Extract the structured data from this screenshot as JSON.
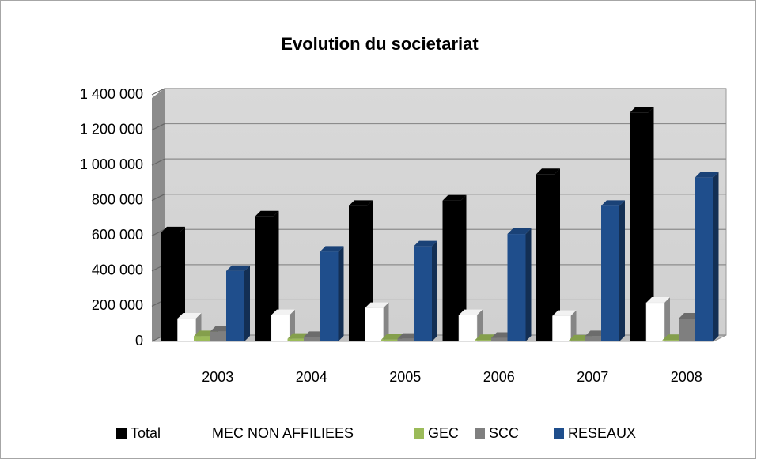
{
  "chart_data": {
    "type": "bar",
    "title": "Evolution du societariat",
    "categories": [
      "2003",
      "2004",
      "2005",
      "2006",
      "2007",
      "2008"
    ],
    "series": [
      {
        "name": "Total",
        "color": "#000000",
        "values": [
          620000,
          710000,
          770000,
          800000,
          950000,
          1300000
        ]
      },
      {
        "name": "MEC NON AFFILIEES",
        "color": "#ffffff",
        "values": [
          130000,
          150000,
          190000,
          150000,
          145000,
          220000
        ]
      },
      {
        "name": "GEC",
        "color": "#9bbb59",
        "values": [
          30000,
          15000,
          10000,
          8000,
          5000,
          8000
        ]
      },
      {
        "name": "SCC",
        "color": "#7f7f7f",
        "values": [
          55000,
          25000,
          15000,
          20000,
          30000,
          130000
        ]
      },
      {
        "name": "RESEAUX",
        "color": "#1f4e8c",
        "values": [
          400000,
          510000,
          540000,
          610000,
          770000,
          930000
        ]
      }
    ],
    "ylim": [
      0,
      1400000
    ],
    "yticks": [
      0,
      {
        "value": 200000,
        "label": "200 000"
      },
      {
        "value": 400000,
        "label": "400 000"
      },
      {
        "value": 600000,
        "label": "600 000"
      },
      {
        "value": 800000,
        "label": "800 000"
      },
      {
        "value": 1000000,
        "label": "1 000 000"
      },
      {
        "value": 1200000,
        "label": "1 200 000"
      },
      {
        "value": 1400000,
        "label": "1 400 000"
      }
    ],
    "grid": true,
    "legend": "bottom"
  }
}
